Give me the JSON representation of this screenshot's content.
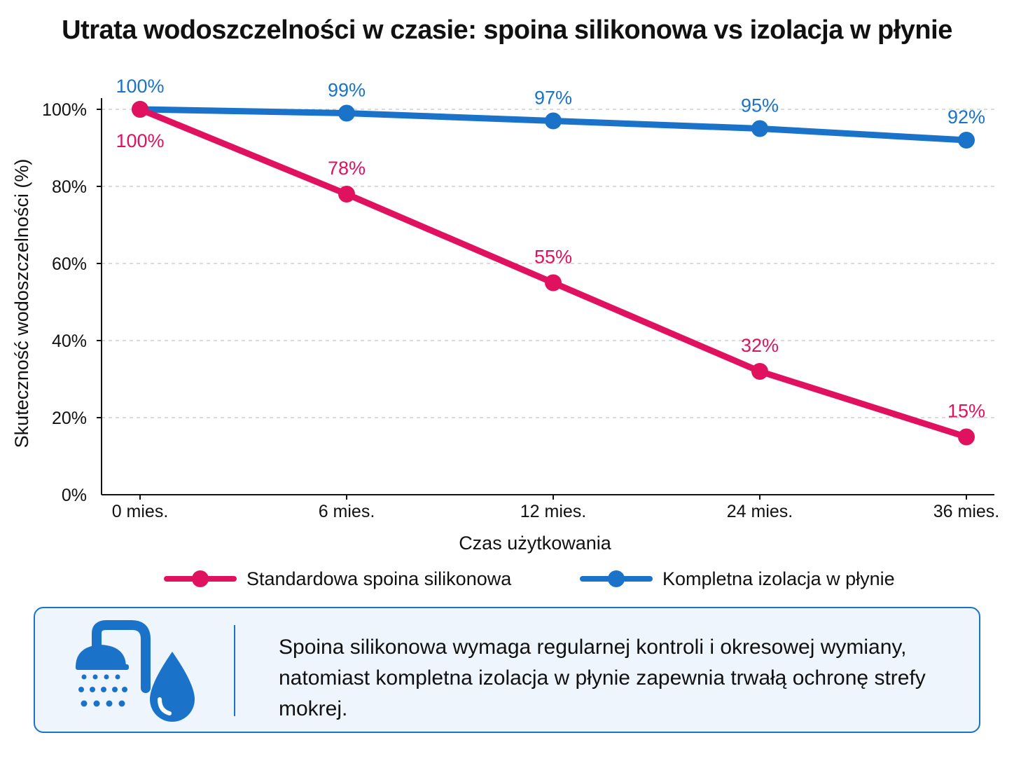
{
  "chart_data": {
    "type": "line",
    "title": "Utrata wodoszczelności w czasie: spoina silikonowa vs izolacja w płynie",
    "xlabel": "Czas użytkowania",
    "ylabel": "Skuteczność wodoszczelności (%)",
    "categories": [
      "0 mies.",
      "6 mies.",
      "12 mies.",
      "24 mies.",
      "36 mies."
    ],
    "ylim": [
      0,
      100
    ],
    "yticks": [
      "0%",
      "20%",
      "40%",
      "60%",
      "80%",
      "100%"
    ],
    "grid": true,
    "legend_position": "bottom",
    "series": [
      {
        "name": "Standardowa spoina silikonowa",
        "color": "#e0125f",
        "values": [
          100,
          78,
          55,
          32,
          15
        ],
        "labels": [
          "100%",
          "78%",
          "55%",
          "32%",
          "15%"
        ]
      },
      {
        "name": "Kompletna izolacja w płynie",
        "color": "#1a73c8",
        "values": [
          100,
          99,
          97,
          95,
          92
        ],
        "labels": [
          "100%",
          "99%",
          "97%",
          "95%",
          "92%"
        ]
      }
    ]
  },
  "note": {
    "icon": "shower-and-water-drop-icon",
    "text": "Spoina silikonowa wymaga regularnej kontroli i okresowej wymiany, natomiast kompletna izolacja w płynie zapewnia trwałą ochronę strefy mokrej.",
    "accent_color": "#1a73c8",
    "background_color": "#eef5fc"
  }
}
